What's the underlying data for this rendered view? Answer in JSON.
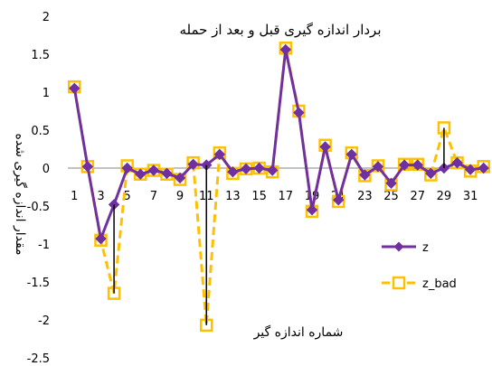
{
  "chart_data": {
    "type": "line",
    "title": "بردار اندازه گیری قبل و بعد از حمله",
    "xlabel": "شماره اندازه گیر",
    "ylabel": "مقدار اندازه گیری شده",
    "ylim": [
      -2.5,
      2
    ],
    "yticks": [
      "2",
      "1.5",
      "1",
      "0.5",
      "0",
      "-0.5",
      "-1",
      "-1.5",
      "-2",
      "-2.5"
    ],
    "x": [
      1,
      2,
      3,
      4,
      5,
      6,
      7,
      8,
      9,
      10,
      11,
      12,
      13,
      14,
      15,
      16,
      17,
      18,
      19,
      20,
      21,
      22,
      23,
      24,
      25,
      26,
      27,
      28,
      29,
      30,
      31,
      32
    ],
    "xtick_labels": [
      "1",
      "3",
      "5",
      "7",
      "9",
      "11",
      "13",
      "15",
      "17",
      "19",
      "21",
      "23",
      "25",
      "27",
      "29",
      "31"
    ],
    "legend_position": "right",
    "series": [
      {
        "name": "z",
        "color": "#7030A0",
        "values": [
          1.05,
          0.02,
          -0.93,
          -0.48,
          0.0,
          -0.08,
          -0.03,
          -0.07,
          -0.13,
          0.05,
          0.04,
          0.18,
          -0.05,
          -0.01,
          0.0,
          -0.03,
          1.56,
          0.73,
          -0.55,
          0.28,
          -0.42,
          0.18,
          -0.09,
          0.02,
          -0.2,
          0.04,
          0.04,
          -0.07,
          0.0,
          0.07,
          -0.02,
          0.0
        ]
      },
      {
        "name": "z_bad",
        "color": "#FFC000",
        "values": [
          1.07,
          0.02,
          -0.95,
          -1.65,
          0.03,
          -0.08,
          -0.03,
          -0.08,
          -0.15,
          0.07,
          -2.07,
          0.2,
          -0.07,
          -0.01,
          0.0,
          -0.05,
          1.58,
          0.75,
          -0.57,
          0.3,
          -0.44,
          0.2,
          -0.1,
          0.03,
          -0.22,
          0.05,
          0.05,
          -0.09,
          0.53,
          0.07,
          -0.04,
          0.02
        ]
      }
    ]
  }
}
